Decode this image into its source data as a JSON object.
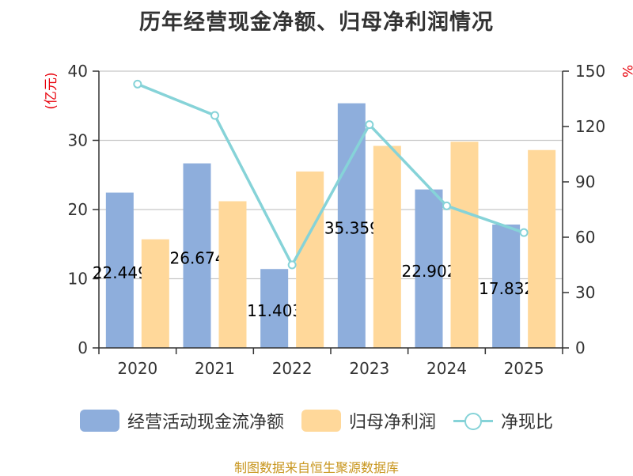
{
  "chart_data": {
    "type": "bar+line",
    "title": "历年经营现金净额、归母净利润情况",
    "categories": [
      "2020",
      "2021",
      "2022",
      "2023",
      "2024",
      "2025"
    ],
    "left_axis": {
      "unit": "(亿元)",
      "min": 0,
      "max": 40,
      "ticks": [
        0,
        10,
        20,
        30,
        40
      ]
    },
    "right_axis": {
      "unit": "%",
      "min": 0,
      "max": 150,
      "ticks": [
        0,
        30,
        60,
        90,
        120,
        150
      ]
    },
    "series": [
      {
        "name": "经营活动现金流净额",
        "type": "bar",
        "axis": "left",
        "values": [
          22.449,
          26.674,
          11.403,
          35.359,
          22.902,
          17.832
        ],
        "labels": [
          "22.449",
          "26.674",
          "11.403",
          "35.359",
          "22.902",
          "17.832"
        ],
        "color": "#8eaedc"
      },
      {
        "name": "归母净利润",
        "type": "bar",
        "axis": "left",
        "values": [
          15.7,
          21.2,
          25.5,
          29.2,
          29.8,
          28.6
        ],
        "color": "#ffd89a"
      },
      {
        "name": "净现比",
        "type": "line",
        "axis": "right",
        "values": [
          143,
          126,
          45,
          121,
          77,
          62.5
        ],
        "color": "#86d3d8"
      }
    ],
    "legend_position": "bottom",
    "source": "制图数据来自恒生聚源数据库"
  }
}
